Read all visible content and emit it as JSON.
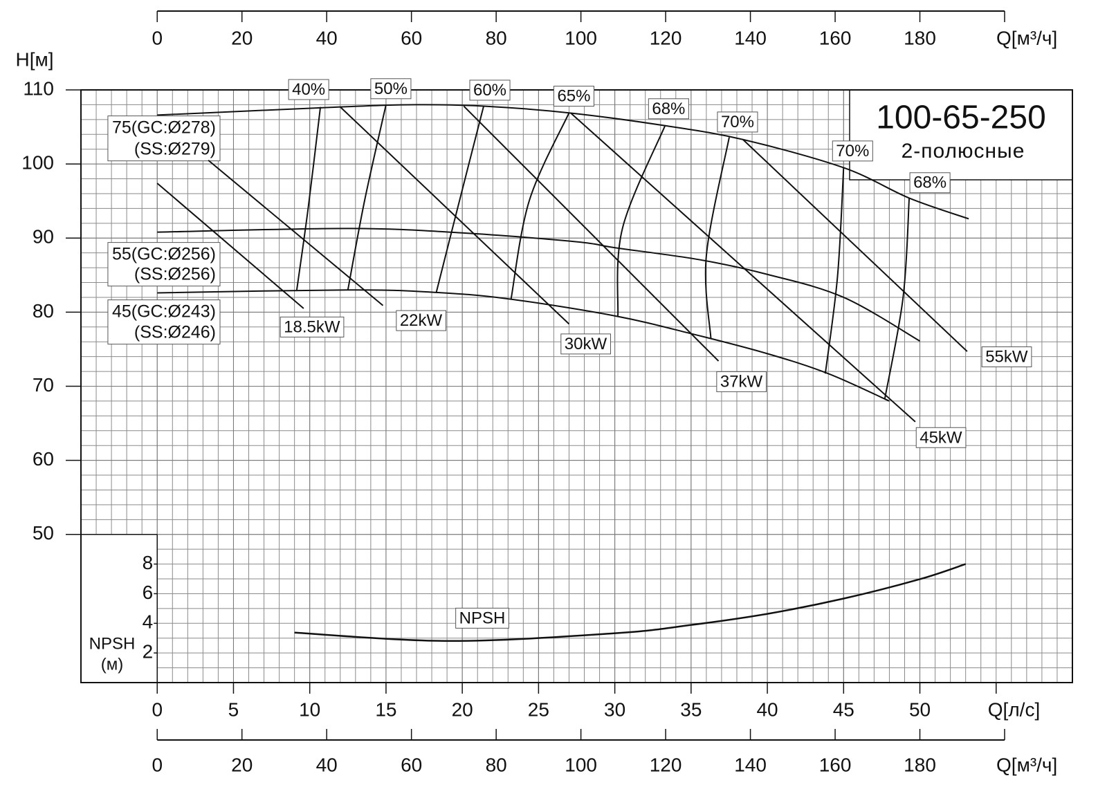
{
  "chart_data": {
    "type": "line",
    "title": "100-65-250",
    "subtitle": "2-полюсные",
    "color": "#111111",
    "grid": true,
    "x_label": "Q[л/с]",
    "xlim": [
      -5,
      60
    ],
    "xticks": [
      0,
      5,
      10,
      15,
      20,
      25,
      30,
      35,
      40,
      45,
      50
    ],
    "x2_label": "Q[м³/ч]",
    "x2lim": [
      -18,
      216
    ],
    "x2ticks": [
      0,
      20,
      40,
      60,
      80,
      100,
      120,
      140,
      160,
      180
    ],
    "y_label": "H[м]",
    "ylim": [
      30,
      110
    ],
    "yticks": [
      50,
      60,
      70,
      80,
      90,
      100,
      110
    ],
    "y2_label": [
      "NPSH",
      "(м)"
    ],
    "y2lim": [
      0,
      40
    ],
    "y2ticks": [
      2,
      4,
      6,
      8
    ],
    "series": [
      {
        "name": [
          "75(GC:Ø278)",
          "(SS:Ø279)"
        ],
        "x": [
          0,
          12,
          17,
          21.5,
          27,
          33.2,
          38.4,
          45,
          49.3,
          53.2
        ],
        "values": [
          106.6,
          107.7,
          108.0,
          107.8,
          106.9,
          105.2,
          103.3,
          99.5,
          95.4,
          92.6
        ]
      },
      {
        "name": [
          "55(GC:Ø256)",
          "(SS:Ø256)"
        ],
        "x": [
          0,
          12.5,
          20,
          27.5,
          30,
          35.5,
          40,
          45,
          50
        ],
        "values": [
          90.8,
          91.3,
          90.7,
          89.5,
          88.7,
          87.1,
          85.1,
          82.0,
          76.1
        ]
      },
      {
        "name": [
          "45(GC:Ø243)",
          "(SS:Ø246)"
        ],
        "x": [
          0,
          12.5,
          18,
          23,
          30,
          35,
          40,
          44,
          48
        ],
        "values": [
          82.6,
          83.0,
          82.7,
          81.8,
          79.5,
          77.1,
          74.4,
          71.7,
          68.0
        ]
      }
    ],
    "efficiency": [
      {
        "name": "40%",
        "x": [
          10.7,
          9.9,
          9.15
        ],
        "values": [
          107.7,
          94.1,
          83.0
        ]
      },
      {
        "name": "50%",
        "x": [
          15.0,
          13.6,
          12.5
        ],
        "values": [
          108.0,
          95.1,
          83.0
        ]
      },
      {
        "name": "60%",
        "x": [
          21.4,
          19.7,
          18.3
        ],
        "values": [
          107.8,
          94.1,
          82.7
        ]
      },
      {
        "name": "65%",
        "x": [
          27.0,
          24.4,
          23.2
        ],
        "values": [
          106.9,
          95.1,
          81.8
        ]
      },
      {
        "name": "68%",
        "x": [
          33.3,
          30.5,
          30.2
        ],
        "values": [
          105.2,
          91.3,
          79.5
        ]
      },
      {
        "name": "70%",
        "x": [
          37.5,
          36.0,
          36.3
        ],
        "values": [
          103.6,
          87.6,
          76.4
        ]
      },
      {
        "name": "70%",
        "x": [
          45.0,
          44.6,
          43.8
        ],
        "values": [
          99.5,
          84.8,
          71.7
        ]
      },
      {
        "name": "68%",
        "x": [
          49.3,
          48.9,
          47.7
        ],
        "values": [
          95.4,
          82.0,
          68.3
        ]
      }
    ],
    "power": [
      {
        "name": "18.5kW",
        "x": [
          0,
          9.6
        ],
        "values": [
          97.4,
          80.5
        ]
      },
      {
        "name": "22kW",
        "x": [
          3.35,
          14.8
        ],
        "values": [
          100.5,
          80.9
        ]
      },
      {
        "name": "30kW",
        "x": [
          12.0,
          27.0
        ],
        "values": [
          107.7,
          78.4
        ]
      },
      {
        "name": "37kW",
        "x": [
          20.1,
          36.8
        ],
        "values": [
          107.8,
          73.4
        ]
      },
      {
        "name": "45kW",
        "x": [
          27.1,
          49.7
        ],
        "values": [
          106.9,
          65.2
        ]
      },
      {
        "name": "55kW",
        "x": [
          38.4,
          53.1
        ],
        "values": [
          103.3,
          74.7
        ]
      }
    ],
    "npsh": {
      "name": "NPSH",
      "axis": "y2",
      "x": [
        9.0,
        19.2,
        30,
        35,
        40,
        45,
        50,
        53
      ],
      "values": [
        3.37,
        2.81,
        3.33,
        3.89,
        4.64,
        5.67,
        6.98,
        8.0
      ]
    }
  }
}
